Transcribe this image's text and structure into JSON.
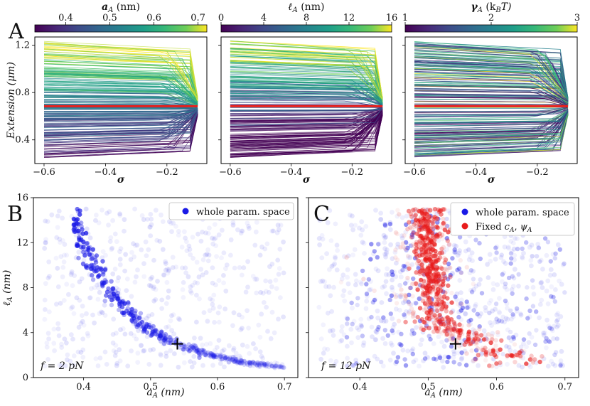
{
  "chart_data": [
    {
      "type": "line",
      "panel": "A",
      "xlabel": "σ",
      "ylabel": "Extension (μm)",
      "colorbar_label": "a_A (nm)",
      "colorbar_range": [
        0.33,
        0.72
      ],
      "colorbar_ticks": [
        "0.4",
        "0.5",
        "0.6",
        "0.7"
      ],
      "colorbar_tick_values": [
        0.4,
        0.5,
        0.6,
        0.7
      ],
      "x_ticks": [
        "−0.6",
        "−0.4",
        "−0.2"
      ],
      "x_tick_values": [
        -0.6,
        -0.4,
        -0.2
      ],
      "y_ticks": [
        "0.4",
        "0.8",
        "1.2"
      ],
      "y_tick_values": [
        0.4,
        0.8,
        1.2
      ],
      "xlim": [
        -0.63,
        -0.07
      ],
      "ylim": [
        0.2,
        1.27
      ],
      "reference_line": {
        "y": 0.685,
        "color": "#e8201c"
      },
      "x_end": -0.1,
      "y_end_range": [
        0.61,
        0.76
      ],
      "y_start_range": [
        0.25,
        1.24
      ]
    },
    {
      "type": "line",
      "panel": "A",
      "xlabel": "σ",
      "colorbar_label": "ℓ_A (nm)",
      "colorbar_range": [
        0,
        16
      ],
      "colorbar_ticks": [
        "0",
        "4",
        "8",
        "12",
        "16"
      ],
      "colorbar_tick_values": [
        0,
        4,
        8,
        12,
        16
      ],
      "x_ticks": [
        "−0.6",
        "−0.4",
        "−0.2"
      ],
      "x_tick_values": [
        -0.6,
        -0.4,
        -0.2
      ],
      "xlim": [
        -0.63,
        -0.07
      ],
      "ylim": [
        0.2,
        1.27
      ],
      "reference_line": {
        "y": 0.685,
        "color": "#e8201c"
      }
    },
    {
      "type": "line",
      "panel": "A",
      "xlabel": "σ",
      "colorbar_label": "γ_A (k_B T)",
      "colorbar_range": [
        1,
        3
      ],
      "colorbar_ticks": [
        "1",
        "2",
        "3"
      ],
      "colorbar_tick_values": [
        1,
        2,
        3
      ],
      "x_ticks": [
        "−0.6",
        "−0.4",
        "−0.2"
      ],
      "x_tick_values": [
        -0.6,
        -0.4,
        -0.2
      ],
      "xlim": [
        -0.63,
        -0.07
      ],
      "ylim": [
        0.2,
        1.27
      ],
      "reference_line": {
        "y": 0.685,
        "color": "#e8201c"
      }
    },
    {
      "type": "scatter",
      "panel": "B",
      "xlabel": "a_A (nm)",
      "ylabel": "ℓ_A (nm)",
      "xlim": [
        0.325,
        0.72
      ],
      "ylim": [
        0,
        16
      ],
      "x_ticks": [
        "0.4",
        "0.5",
        "0.6",
        "0.7"
      ],
      "x_tick_values": [
        0.4,
        0.5,
        0.6,
        0.7
      ],
      "y_ticks": [
        "0",
        "4",
        "8",
        "12",
        "16"
      ],
      "y_tick_values": [
        0,
        4,
        8,
        12,
        16
      ],
      "legend": [
        "whole param. space"
      ],
      "legend_position": "top-right",
      "series_colors": [
        "#1a1ae6"
      ],
      "marker": {
        "x": 0.54,
        "y": 3.0,
        "symbol": "+"
      },
      "annotation": "f = 2 pN",
      "ridge_curve": "l = 3.0 * (0.54 / a)^4.6 (approx.)"
    },
    {
      "type": "scatter",
      "panel": "C",
      "xlabel": "a_A (nm)",
      "xlim": [
        0.325,
        0.72
      ],
      "ylim": [
        0,
        16
      ],
      "x_ticks": [
        "0.4",
        "0.5",
        "0.6",
        "0.7"
      ],
      "x_tick_values": [
        0.4,
        0.5,
        0.6,
        0.7
      ],
      "legend": [
        "whole param. space",
        "Fixed c_A, ψ_A"
      ],
      "legend_position": "top-right",
      "series_colors": [
        "#1a1ae6",
        "#e81c1c"
      ],
      "marker": {
        "x": 0.54,
        "y": 3.0,
        "symbol": "+"
      },
      "annotation": "f = 12 pN"
    }
  ],
  "panels": {
    "A": "A",
    "B": "B",
    "C": "C"
  },
  "colorbars": [
    {
      "label_main": "a",
      "label_sub": "A",
      "label_unit": " (nm)"
    },
    {
      "label_main": "ℓ",
      "label_sub": "A",
      "label_unit": " (nm)"
    },
    {
      "label_main": "γ",
      "label_sub": "A",
      "label_unit": " (k",
      "label_sub2": "B",
      "label_unit2": "T)"
    }
  ],
  "axis_text": {
    "sigma": "σ",
    "extension": "Extension (μm)",
    "aA_main": "a",
    "aA_sub": "A",
    "aA_unit": " (nm)",
    "lA_main": "ℓ",
    "lA_sub": "A",
    "lA_unit": " (nm)"
  },
  "legend_text": {
    "whole": "whole param. space",
    "fixed_main": "Fixed ",
    "fixed_c": "c",
    "fixed_sub1": "A",
    "fixed_sep": ", ",
    "fixed_psi": "ψ",
    "fixed_sub2": "A"
  },
  "annotations": {
    "B_f": "f",
    "B_eq": " = 2 pN",
    "C_f": "f",
    "C_eq": " = 12 pN"
  }
}
